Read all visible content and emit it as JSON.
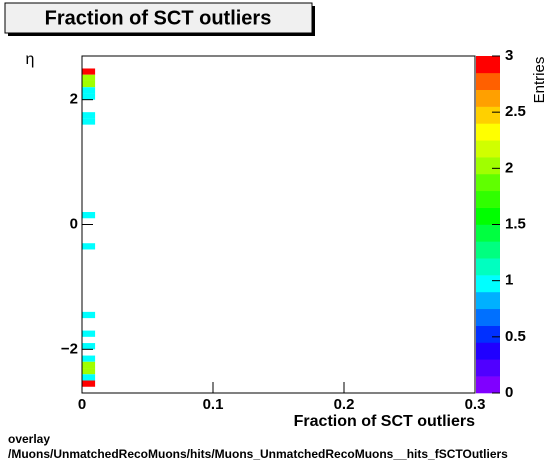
{
  "chart_data": {
    "type": "heatmap",
    "title": "Fraction of SCT outliers",
    "x_label": "Fraction of SCT outliers",
    "y_label": "η",
    "z_label": "Entries",
    "footer": [
      "overlay",
      "/Muons/UnmatchedRecoMuons/hits/Muons_UnmatchedRecoMuons__hits_fSCTOutliers"
    ],
    "xlim": [
      0,
      0.3
    ],
    "xticks": [
      0,
      0.1,
      0.2,
      0.3
    ],
    "ylim": [
      -2.7,
      2.7
    ],
    "yticks": [
      {
        "value": -2,
        "label": "−2"
      },
      0,
      2
    ],
    "zlim": [
      0,
      3
    ],
    "zticks": [
      0,
      0.5,
      1,
      1.5,
      2,
      2.5,
      3
    ],
    "palette": [
      "#8000ff",
      "#5000ff",
      "#2000ff",
      "#0030ff",
      "#0070ff",
      "#00b0ff",
      "#00ffff",
      "#00ffc0",
      "#00ff80",
      "#00ff40",
      "#00ff00",
      "#30ff00",
      "#60ff00",
      "#a0ff00",
      "#d0ff00",
      "#ffff00",
      "#ffd000",
      "#ffa000",
      "#ff6000",
      "#ff0000"
    ],
    "cells": [
      {
        "x": [
          0,
          0.01
        ],
        "y": [
          2.4,
          2.5
        ],
        "value": 3
      },
      {
        "x": [
          0,
          0.01
        ],
        "y": [
          2.3,
          2.4
        ],
        "value": 2
      },
      {
        "x": [
          0,
          0.01
        ],
        "y": [
          2.2,
          2.3
        ],
        "value": 2
      },
      {
        "x": [
          0,
          0.01
        ],
        "y": [
          2.1,
          2.2
        ],
        "value": 1
      },
      {
        "x": [
          0,
          0.01
        ],
        "y": [
          2.0,
          2.1
        ],
        "value": 1
      },
      {
        "x": [
          0,
          0.01
        ],
        "y": [
          1.7,
          1.8
        ],
        "value": 1
      },
      {
        "x": [
          0,
          0.01
        ],
        "y": [
          1.6,
          1.7
        ],
        "value": 1
      },
      {
        "x": [
          0,
          0.01
        ],
        "y": [
          0.1,
          0.2
        ],
        "value": 1
      },
      {
        "x": [
          0,
          0.01
        ],
        "y": [
          -0.4,
          -0.3
        ],
        "value": 1
      },
      {
        "x": [
          0,
          0.01
        ],
        "y": [
          -1.5,
          -1.4
        ],
        "value": 1
      },
      {
        "x": [
          0,
          0.01
        ],
        "y": [
          -1.8,
          -1.7
        ],
        "value": 1
      },
      {
        "x": [
          0,
          0.01
        ],
        "y": [
          -2.0,
          -1.9
        ],
        "value": 1
      },
      {
        "x": [
          0,
          0.01
        ],
        "y": [
          -2.2,
          -2.1
        ],
        "value": 1
      },
      {
        "x": [
          0,
          0.01
        ],
        "y": [
          -2.3,
          -2.2
        ],
        "value": 2
      },
      {
        "x": [
          0,
          0.01
        ],
        "y": [
          -2.4,
          -2.3
        ],
        "value": 2
      },
      {
        "x": [
          0,
          0.01
        ],
        "y": [
          -2.5,
          -2.4
        ],
        "value": 1
      },
      {
        "x": [
          0,
          0.01
        ],
        "y": [
          -2.6,
          -2.5
        ],
        "value": 3
      }
    ]
  }
}
